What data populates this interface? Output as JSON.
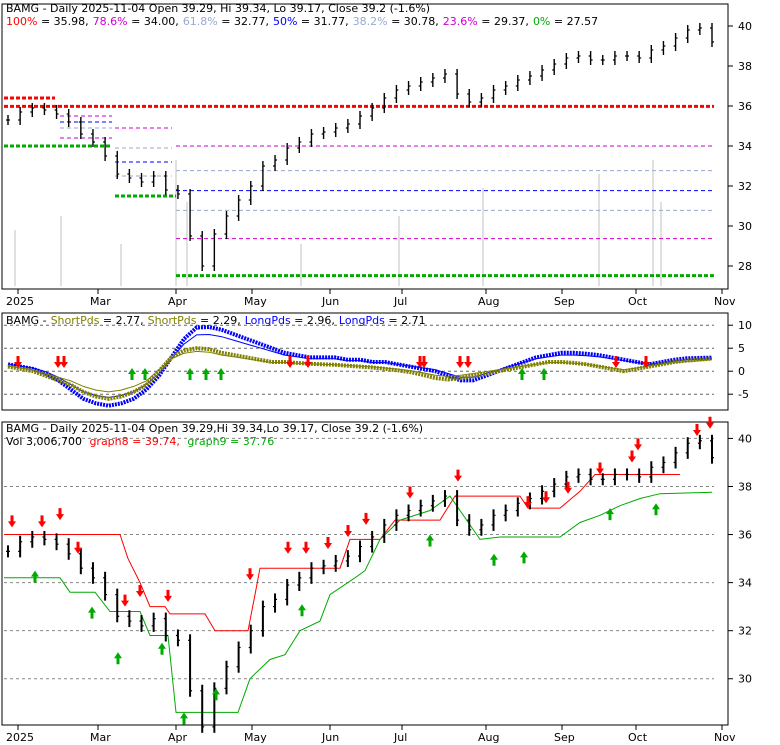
{
  "chart_data": [
    {
      "type": "ohlc",
      "panel": "price-fibonacci",
      "header": {
        "title": "BAMG - Daily 2025-11-04 Open 39.29, Hi 39.34, Lo 39.17, Close 39.2 (-1.6%)",
        "fib_levels": [
          {
            "label": "100%",
            "value": 35.98,
            "text": "100% = 35.98,",
            "color": "#ff0000"
          },
          {
            "label": "78.6%",
            "value": 34.0,
            "text": "78.6% = 34.00,",
            "color": "#cc00cc"
          },
          {
            "label": "61.8%",
            "value": 32.77,
            "text": "61.8% = 32.77,",
            "color": "#99aacc"
          },
          {
            "label": "50%",
            "value": 31.77,
            "text": "50% = 31.77,",
            "color": "#0000ff"
          },
          {
            "label": "38.2%",
            "value": 30.78,
            "text": "38.2% = 30.78,",
            "color": "#99aacc"
          },
          {
            "label": "23.6%",
            "value": 29.37,
            "text": "23.6% = 29.37,",
            "color": "#cc00cc"
          },
          {
            "label": "0%",
            "value": 27.57,
            "text": "0% = 27.57",
            "color": "#00aa00"
          }
        ]
      },
      "y_ticks": [
        "40",
        "38",
        "36",
        "34",
        "32",
        "30",
        "28"
      ],
      "ylim": [
        27.0,
        41.0
      ],
      "x_ticks": [
        "2025",
        "Mar",
        "Apr",
        "May",
        "Jun",
        "Jul",
        "Aug",
        "Sep",
        "Oct",
        "Nov"
      ],
      "close_series": [
        35.3,
        35.7,
        35.9,
        35.8,
        35.6,
        35.2,
        34.6,
        34.2,
        33.5,
        32.6,
        32.4,
        32.2,
        32.5,
        31.8,
        31.6,
        29.5,
        28.0,
        29.6,
        30.5,
        31.3,
        32.0,
        33.0,
        33.3,
        33.9,
        34.2,
        34.6,
        34.7,
        34.9,
        35.1,
        35.5,
        35.9,
        36.4,
        36.8,
        37.0,
        37.2,
        37.4,
        37.6,
        36.6,
        36.2,
        36.4,
        36.8,
        37.0,
        37.3,
        37.5,
        37.8,
        38.1,
        38.4,
        38.5,
        38.3,
        38.3,
        38.5,
        38.5,
        38.4,
        38.8,
        39.0,
        39.4,
        39.8,
        39.9,
        39.2
      ]
    },
    {
      "type": "line",
      "panel": "pds-oscillator",
      "header": {
        "ticker": "BAMG -",
        "items": [
          {
            "text": "ShortPds = 2.77,",
            "value": 2.77,
            "color": "#808000"
          },
          {
            "text": "ShortPds = 2.29,",
            "value": 2.29,
            "color": "#808000"
          },
          {
            "text": "LongPds = 2.96,",
            "value": 2.96,
            "color": "#0000ff"
          },
          {
            "text": "LongPds = 2.71",
            "value": 2.71,
            "color": "#0000ff"
          }
        ]
      },
      "y_ticks": [
        "10",
        "5",
        "0",
        "-5"
      ],
      "ylim": [
        -8,
        12
      ],
      "series": [
        {
          "name": "LongPds",
          "color": "#0000ff",
          "values": [
            1.5,
            1.0,
            0.5,
            -0.5,
            -2,
            -4,
            -6,
            -7,
            -7.5,
            -7,
            -6,
            -4,
            -1,
            3,
            7,
            9.5,
            9.6,
            9,
            8,
            7,
            6,
            5,
            4,
            3.5,
            3,
            3,
            3,
            2.5,
            2.5,
            2,
            2,
            1.5,
            1,
            0.5,
            0,
            -1,
            -2,
            -2,
            -1,
            0,
            1,
            2,
            3,
            3.5,
            4,
            4,
            3.8,
            3.5,
            3,
            2.5,
            2,
            1.5,
            2,
            2.5,
            2.8,
            2.9,
            2.96
          ]
        },
        {
          "name": "ShortPds",
          "color": "#808000",
          "values": [
            1.0,
            0.5,
            0.0,
            -1,
            -2,
            -3,
            -4.5,
            -5.5,
            -6,
            -5.5,
            -4.5,
            -3,
            0,
            3,
            4.5,
            5,
            4.8,
            4,
            3.5,
            3,
            2.5,
            2,
            2,
            1.8,
            1.6,
            1.5,
            1.4,
            1.2,
            1,
            0.8,
            0.5,
            0.2,
            -0.2,
            -0.8,
            -1.5,
            -1.8,
            -1.5,
            -1,
            -0.5,
            0,
            0.5,
            1,
            1.5,
            2,
            2,
            1.8,
            1.5,
            1,
            0.5,
            0,
            0.5,
            1,
            1.5,
            2,
            2.3,
            2.5,
            2.77
          ]
        }
      ]
    },
    {
      "type": "ohlc",
      "panel": "price-stops",
      "header": {
        "title": "BAMG - Daily 2025-11-04 Open 39.29,Hi 39.34,Lo 39.17, Close 39.2 (-1.6%)",
        "vol": "Vol 3,006,700",
        "graph8": "graph8 = 39.74,",
        "graph9": "graph9 = 37.76"
      },
      "y_ticks": [
        "40",
        "38",
        "36",
        "34",
        "32",
        "30"
      ],
      "ylim": [
        28.2,
        40.6
      ],
      "x_ticks": [
        "2025",
        "Mar",
        "Apr",
        "May",
        "Jun",
        "Jul",
        "Aug",
        "Sep",
        "Oct",
        "Nov"
      ]
    }
  ]
}
